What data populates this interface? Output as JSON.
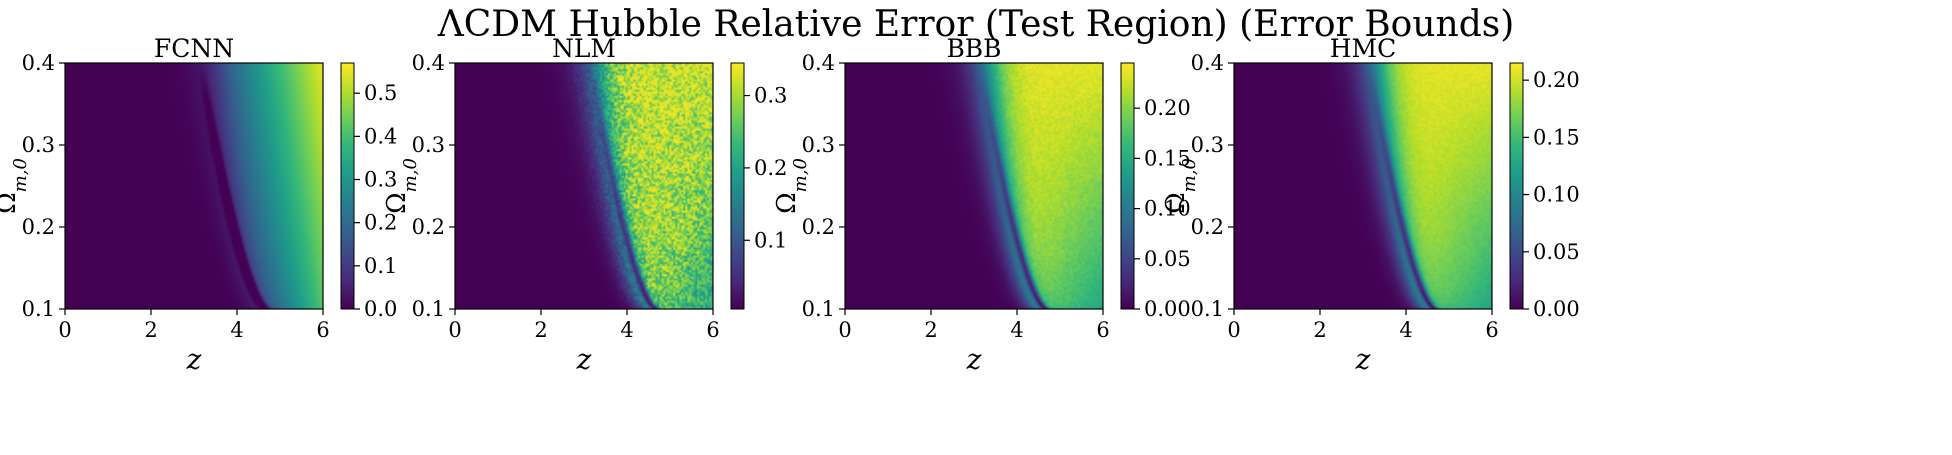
{
  "figure": {
    "title": "ΛCDM Hubble Relative Error (Test Region) (Error Bounds)"
  },
  "colormap": {
    "name": "viridis",
    "stops": [
      "#440154",
      "#482878",
      "#3e4989",
      "#31688e",
      "#26828e",
      "#1f9e89",
      "#35b779",
      "#6ece58",
      "#b5de2b",
      "#fde725"
    ]
  },
  "chart_data": [
    {
      "type": "heatmap",
      "title": "FCNN",
      "xlabel": "z",
      "ylabel": "Ω_{m,0}",
      "xlim": [
        0,
        6
      ],
      "ylim": [
        0.1,
        0.4
      ],
      "xticks": [
        "0",
        "2",
        "4",
        "6"
      ],
      "yticks": [
        "0.1",
        "0.2",
        "0.3",
        "0.4"
      ],
      "colorbar": {
        "min": 0.0,
        "max": 0.57,
        "ticks": [
          0.0,
          0.1,
          0.2,
          0.3,
          0.4,
          0.5
        ],
        "tick_labels": [
          "0.0",
          "0.1",
          "0.2",
          "0.3",
          "0.4",
          "0.5"
        ]
      },
      "pattern": {
        "onset_z_at_top": 3.3,
        "onset_z_at_bottom": 4.5,
        "peak_z": 6.0,
        "noise": 0.0
      }
    },
    {
      "type": "heatmap",
      "title": "NLM",
      "xlabel": "z",
      "ylabel": "Ω_{m,0}",
      "xlim": [
        0,
        6
      ],
      "ylim": [
        0.1,
        0.4
      ],
      "xticks": [
        "0",
        "2",
        "4",
        "6"
      ],
      "yticks": [
        "0.1",
        "0.2",
        "0.3",
        "0.4"
      ],
      "colorbar": {
        "min": 0.005,
        "max": 0.345,
        "ticks": [
          0.1,
          0.2,
          0.3
        ],
        "tick_labels": [
          "0.1",
          "0.2",
          "0.3"
        ]
      },
      "pattern": {
        "onset_z_at_top": 3.3,
        "onset_z_at_bottom": 4.5,
        "peak_z": 4.6,
        "noise": 0.35
      }
    },
    {
      "type": "heatmap",
      "title": "BBB",
      "xlabel": "z",
      "ylabel": "Ω_{m,0}",
      "xlim": [
        0,
        6
      ],
      "ylim": [
        0.1,
        0.4
      ],
      "xticks": [
        "0",
        "2",
        "4",
        "6"
      ],
      "yticks": [
        "0.1",
        "0.2",
        "0.3",
        "0.4"
      ],
      "colorbar": {
        "min": 0.0,
        "max": 0.245,
        "ticks": [
          0.0,
          0.05,
          0.1,
          0.15,
          0.2
        ],
        "tick_labels": [
          "0.00",
          "0.05",
          "0.10",
          "0.15",
          "0.20"
        ]
      },
      "pattern": {
        "onset_z_at_top": 3.3,
        "onset_z_at_bottom": 4.5,
        "peak_z": 4.4,
        "noise": 0.06
      }
    },
    {
      "type": "heatmap",
      "title": "HMC",
      "xlabel": "z",
      "ylabel": "Ω_{m,0}",
      "xlim": [
        0,
        6
      ],
      "ylim": [
        0.1,
        0.4
      ],
      "xticks": [
        "0",
        "2",
        "4",
        "6"
      ],
      "yticks": [
        "0.1",
        "0.2",
        "0.3",
        "0.4"
      ],
      "colorbar": {
        "min": 0.0,
        "max": 0.215,
        "ticks": [
          0.0,
          0.05,
          0.1,
          0.15,
          0.2
        ],
        "tick_labels": [
          "0.00",
          "0.05",
          "0.10",
          "0.15",
          "0.20"
        ]
      },
      "pattern": {
        "onset_z_at_top": 3.3,
        "onset_z_at_bottom": 4.5,
        "peak_z": 4.4,
        "noise": 0.04
      }
    }
  ]
}
